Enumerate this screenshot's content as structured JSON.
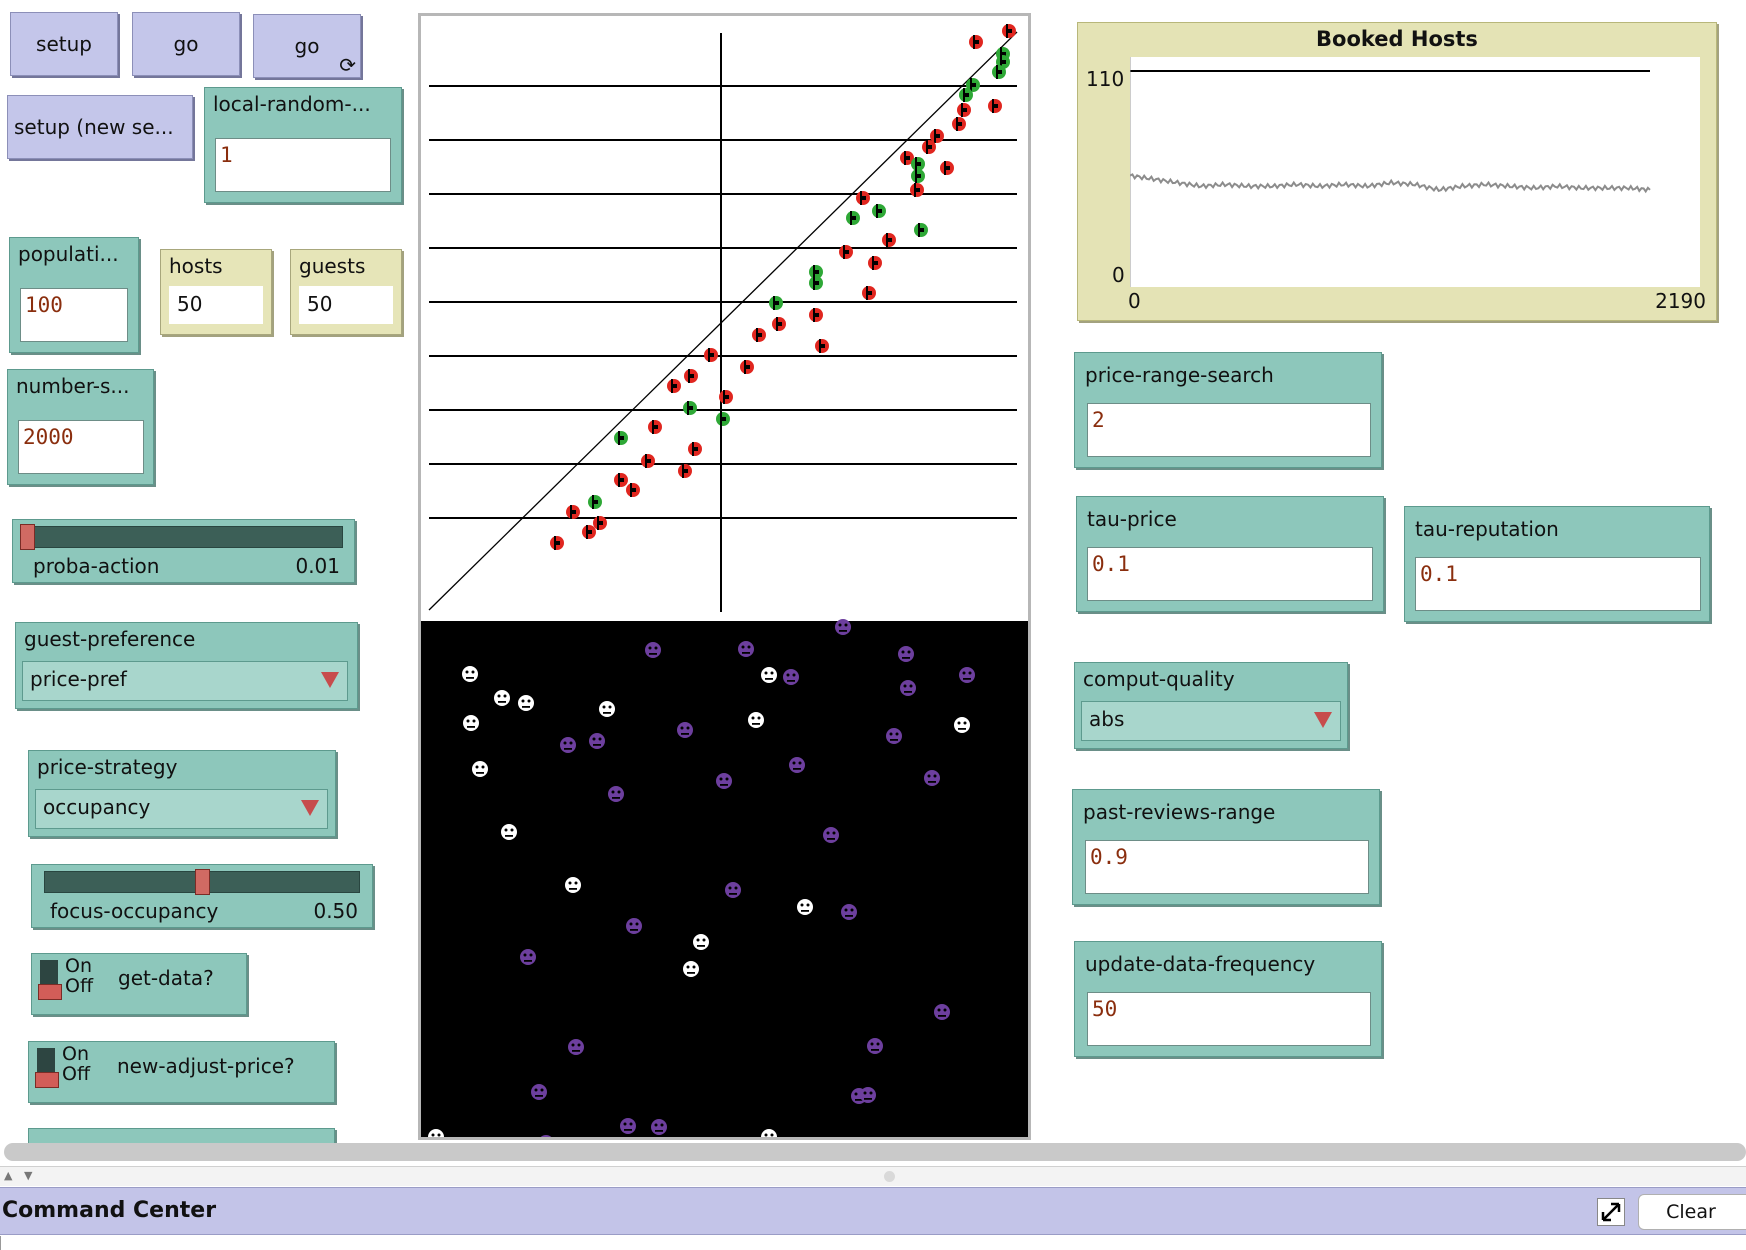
{
  "buttons": {
    "setup": "setup",
    "go": "go",
    "go_forever": "go",
    "forever_glyph": "⟳",
    "setup_new_seed": "setup (new se..."
  },
  "inputs": {
    "local_random": {
      "label": "local-random-...",
      "value": "1"
    },
    "population": {
      "label": "populati...",
      "value": "100"
    },
    "number_steps": {
      "label": "number-s...",
      "value": "2000"
    },
    "price_range_search": {
      "label": "price-range-search",
      "value": "2"
    },
    "tau_price": {
      "label": "tau-price",
      "value": "0.1"
    },
    "tau_reputation": {
      "label": "tau-reputation",
      "value": "0.1"
    },
    "past_reviews_range": {
      "label": "past-reviews-range",
      "value": "0.9"
    },
    "update_data_frequency": {
      "label": "update-data-frequency",
      "value": "50"
    }
  },
  "monitors": {
    "hosts": {
      "label": "hosts",
      "value": "50"
    },
    "guests": {
      "label": "guests",
      "value": "50"
    }
  },
  "sliders": {
    "proba_action": {
      "label": "proba-action",
      "value": "0.01",
      "fraction": 0.01
    },
    "focus_occupancy": {
      "label": "focus-occupancy",
      "value": "0.50",
      "fraction": 0.5
    }
  },
  "choosers": {
    "guest_preference": {
      "label": "guest-preference",
      "value": "price-pref"
    },
    "price_strategy": {
      "label": "price-strategy",
      "value": "occupancy"
    },
    "comput_quality": {
      "label": "comput-quality",
      "value": "abs"
    }
  },
  "switches": {
    "on_label": "On",
    "off_label": "Off",
    "get_data": {
      "label": "get-data?",
      "state": "off"
    },
    "new_adjust_price": {
      "label": "new-adjust-price?",
      "state": "off"
    }
  },
  "plot": {
    "title": "Booked Hosts",
    "y_max": "110",
    "y_min": "0",
    "x_min": "0",
    "x_max": "2190"
  },
  "chart_data": {
    "type": "line",
    "title": "Booked Hosts",
    "xlabel": "",
    "ylabel": "",
    "xlim": [
      0,
      2190
    ],
    "ylim": [
      0,
      110
    ],
    "series": [
      {
        "color": "#000000",
        "x": [
          0,
          2190
        ],
        "y": [
          110,
          110
        ]
      },
      {
        "color": "#8c8c8c",
        "x": [
          0,
          100,
          200,
          300,
          400,
          500,
          600,
          700,
          800,
          900,
          1000,
          1100,
          1200,
          1300,
          1400,
          1500,
          1600,
          1700,
          1800,
          1900,
          2000,
          2100,
          2190
        ],
        "y": [
          51,
          49,
          47,
          45,
          46,
          45,
          45,
          46,
          45,
          46,
          45,
          47,
          46,
          43,
          45,
          46,
          45,
          44,
          45,
          44,
          44,
          44,
          43
        ]
      }
    ]
  },
  "view_colors": {
    "host_red": "#e0261f",
    "host_green": "#2ea836",
    "guest_purple": "#6d3f9e",
    "guest_white": "#ffffff"
  },
  "command_center": {
    "title": "Command Center",
    "clear": "Clear",
    "expand_icon": "expand-icon"
  }
}
